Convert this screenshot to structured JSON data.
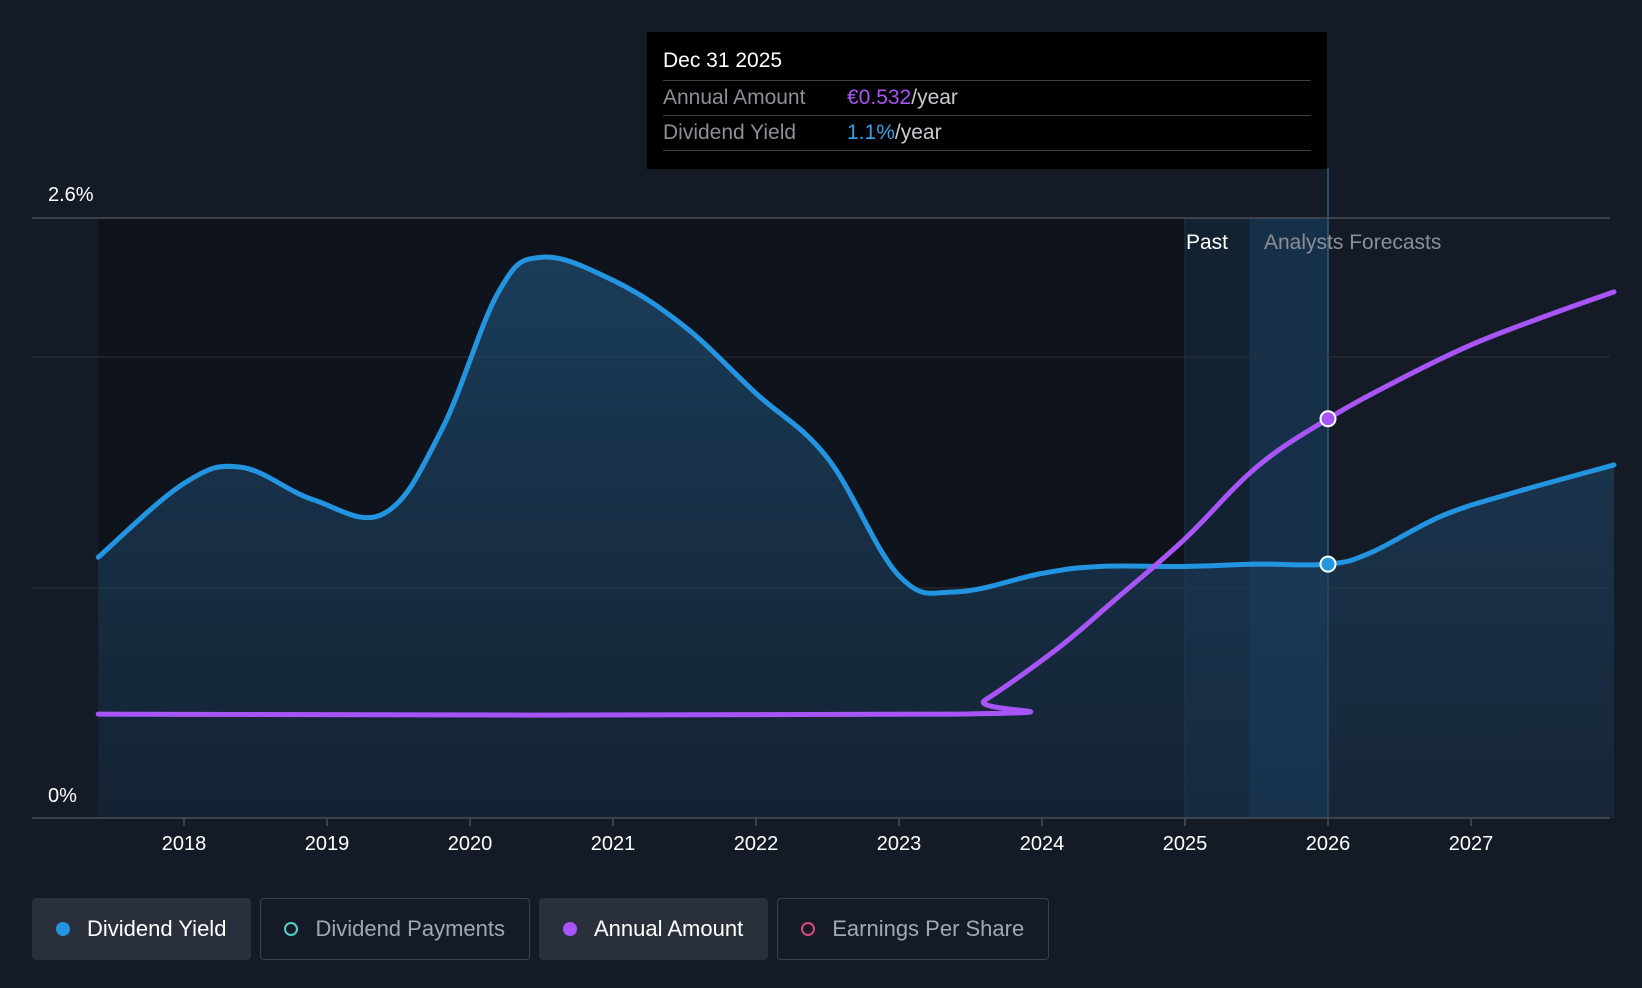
{
  "chart_data": {
    "type": "area",
    "y_axis": {
      "top_label": "2.6%",
      "bottom_label": "0%",
      "ylim": [
        0,
        2.6
      ]
    },
    "x_ticks": [
      "2018",
      "2019",
      "2020",
      "2021",
      "2022",
      "2023",
      "2024",
      "2025",
      "2026",
      "2027"
    ],
    "region_labels": {
      "past": "Past",
      "forecast": "Analysts Forecasts"
    },
    "series": [
      {
        "name": "Dividend Yield",
        "color": "#2394df",
        "points": [
          [
            2017.4,
            1.13
          ],
          [
            2018.0,
            1.45
          ],
          [
            2018.4,
            1.52
          ],
          [
            2018.9,
            1.38
          ],
          [
            2019.4,
            1.32
          ],
          [
            2019.8,
            1.68
          ],
          [
            2020.2,
            2.28
          ],
          [
            2020.5,
            2.43
          ],
          [
            2021.0,
            2.33
          ],
          [
            2021.5,
            2.13
          ],
          [
            2022.0,
            1.84
          ],
          [
            2022.5,
            1.56
          ],
          [
            2023.0,
            1.05
          ],
          [
            2023.4,
            0.98
          ],
          [
            2024.0,
            1.06
          ],
          [
            2024.4,
            1.09
          ],
          [
            2025.0,
            1.09
          ],
          [
            2025.5,
            1.1
          ],
          [
            2026.0,
            1.1
          ],
          [
            2026.3,
            1.15
          ],
          [
            2026.8,
            1.31
          ],
          [
            2027.3,
            1.41
          ],
          [
            2028.0,
            1.53
          ]
        ]
      },
      {
        "name": "Annual Amount",
        "color": "#a855f7",
        "points": [
          [
            2017.4,
            0.45
          ],
          [
            2023.4,
            0.45
          ],
          [
            2023.6,
            0.51
          ],
          [
            2024.1,
            0.73
          ],
          [
            2024.5,
            0.94
          ],
          [
            2025.0,
            1.21
          ],
          [
            2025.5,
            1.52
          ],
          [
            2026.0,
            1.73
          ],
          [
            2026.5,
            1.9
          ],
          [
            2027.0,
            2.05
          ],
          [
            2027.5,
            2.17
          ],
          [
            2028.0,
            2.28
          ]
        ]
      }
    ],
    "tooltip": {
      "date": "Dec 31 2025",
      "rows": [
        {
          "label": "Annual Amount",
          "value": "€0.532",
          "unit": "/year",
          "color": "#a855f7"
        },
        {
          "label": "Dividend Yield",
          "value": "1.1%",
          "unit": "/year",
          "color": "#3b9fe8"
        }
      ]
    },
    "legend": [
      {
        "name": "Dividend Yield",
        "color": "#2394df",
        "active": true
      },
      {
        "name": "Dividend Payments",
        "color": "#4fd1c5",
        "active": false
      },
      {
        "name": "Annual Amount",
        "color": "#a855f7",
        "active": true
      },
      {
        "name": "Earnings Per Share",
        "color": "#d9467a",
        "active": false
      }
    ]
  }
}
